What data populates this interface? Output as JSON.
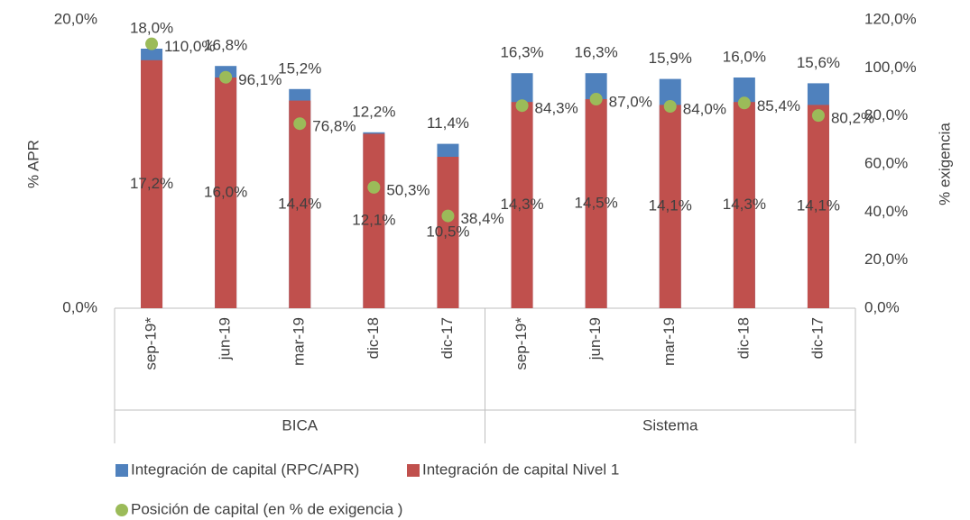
{
  "chart_data": {
    "type": "bar",
    "y_label": "% APR",
    "y2_label": "% exigencia",
    "groups": [
      {
        "label": "BICA",
        "categories": [
          "sep-19*",
          "jun-19",
          "mar-19",
          "dic-18",
          "dic-17"
        ]
      },
      {
        "label": "Sistema",
        "categories": [
          "sep-19*",
          "jun-19",
          "mar-19",
          "dic-18",
          "dic-17"
        ]
      }
    ],
    "series": [
      {
        "name": "Integración de capital (RPC/APR)",
        "color": "#4f81bd",
        "type": "bar",
        "values": [
          18.0,
          16.8,
          15.2,
          12.2,
          11.4,
          16.3,
          16.3,
          15.9,
          16.0,
          15.6
        ],
        "value_labels": [
          "18,0%",
          "16,8%",
          "15,2%",
          "12,2%",
          "11,4%",
          "16,3%",
          "16,3%",
          "15,9%",
          "16,0%",
          "15,6%"
        ]
      },
      {
        "name": "Integración de capital Nivel 1",
        "color": "#c0504d",
        "type": "bar",
        "values": [
          17.2,
          16.0,
          14.4,
          12.1,
          10.5,
          14.3,
          14.5,
          14.1,
          14.3,
          14.1
        ],
        "value_labels": [
          "17,2%",
          "16,0%",
          "14,4%",
          "12,1%",
          "10,5%",
          "14,3%",
          "14,5%",
          "14,1%",
          "14,3%",
          "14,1%"
        ]
      },
      {
        "name": "Posición de capital (en % de exigencia )",
        "color": "#9bbb59",
        "type": "scatter",
        "axis": "y2",
        "values": [
          110.0,
          96.1,
          76.8,
          50.3,
          38.4,
          84.3,
          87.0,
          84.0,
          85.4,
          80.2
        ],
        "value_labels": [
          "110,0%",
          "96,1%",
          "76,8%",
          "50,3%",
          "38,4%",
          "84,3%",
          "87,0%",
          "84,0%",
          "85,4%",
          "80,2%"
        ]
      }
    ],
    "ylim": [
      0,
      20
    ],
    "yticks": [
      {
        "value": 0,
        "label": "0,0%"
      },
      {
        "value": 20,
        "label": "20,0%"
      }
    ],
    "y2lim": [
      0,
      120
    ],
    "y2ticks": [
      {
        "value": 0,
        "label": "0,0%"
      },
      {
        "value": 20,
        "label": "20,0%"
      },
      {
        "value": 40,
        "label": "40,0%"
      },
      {
        "value": 60,
        "label": "60,0%"
      },
      {
        "value": 80,
        "label": "80,0%"
      },
      {
        "value": 100,
        "label": "100,0%"
      },
      {
        "value": 120,
        "label": "120,0%"
      }
    ]
  }
}
